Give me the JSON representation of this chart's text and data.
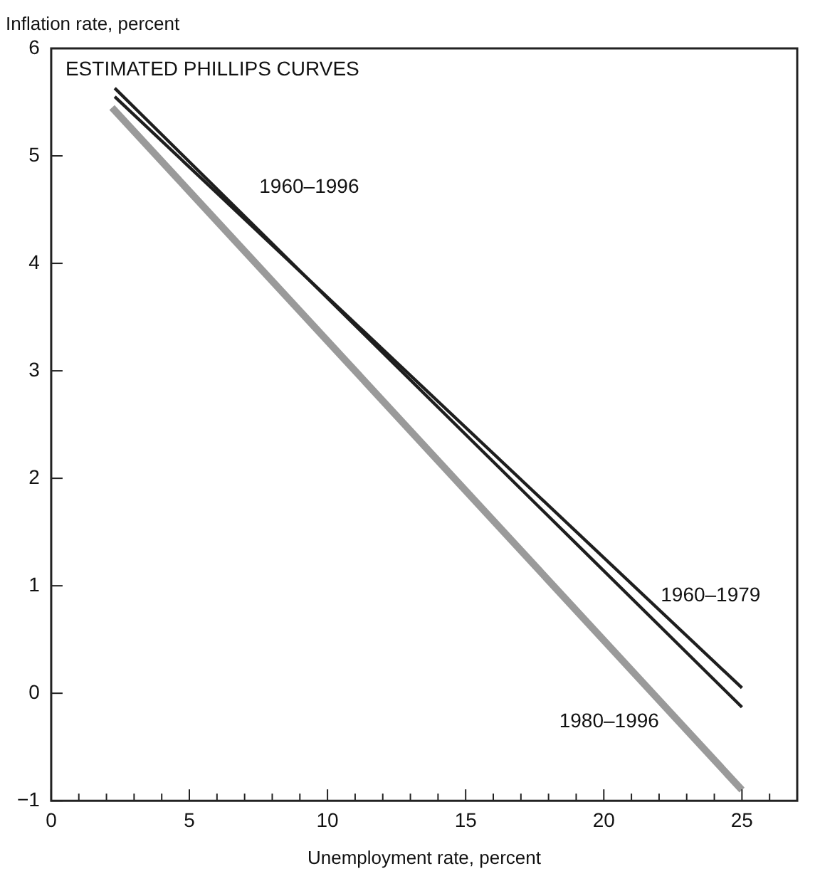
{
  "chart_data": {
    "type": "line",
    "title": "ESTIMATED PHILLIPS CURVES",
    "xlabel": "Unemployment rate, percent",
    "ylabel": "Inflation rate, percent",
    "xlim": [
      0,
      27
    ],
    "ylim": [
      -1,
      6
    ],
    "xticks": [
      0,
      {
        "value": 1,
        "label": null
      },
      {
        "value": 2,
        "label": null
      },
      {
        "value": 3,
        "label": null
      },
      {
        "value": 4,
        "label": null
      },
      5,
      {
        "value": 6,
        "label": null
      },
      {
        "value": 7,
        "label": null
      },
      {
        "value": 8,
        "label": null
      },
      {
        "value": 9,
        "label": null
      },
      10,
      {
        "value": 11,
        "label": null
      },
      {
        "value": 12,
        "label": null
      },
      {
        "value": 13,
        "label": null
      },
      {
        "value": 14,
        "label": null
      },
      15,
      {
        "value": 16,
        "label": null
      },
      {
        "value": 17,
        "label": null
      },
      {
        "value": 18,
        "label": null
      },
      {
        "value": 19,
        "label": null
      },
      20,
      {
        "value": 21,
        "label": null
      },
      {
        "value": 22,
        "label": null
      },
      {
        "value": 23,
        "label": null
      },
      {
        "value": 24,
        "label": null
      },
      25,
      {
        "value": 26,
        "label": null
      }
    ],
    "yticks": [
      {
        "value": -1,
        "label": "−1"
      },
      0,
      1,
      2,
      3,
      4,
      5,
      6
    ],
    "grid": false,
    "legend": false,
    "marker": "none",
    "line_style": "solid",
    "series": [
      {
        "name": "1960–1996",
        "color": "#1e1e1e",
        "x": [
          2.3,
          25
        ],
        "values": [
          5.63,
          -0.13
        ]
      },
      {
        "name": "1960–1979",
        "color": "#1e1e1e",
        "x": [
          2.3,
          25
        ],
        "values": [
          5.55,
          0.05
        ]
      },
      {
        "name": "1980–1996",
        "color": "#9a9a9a",
        "x": [
          2.2,
          25
        ],
        "values": [
          5.45,
          -0.9
        ]
      }
    ]
  }
}
